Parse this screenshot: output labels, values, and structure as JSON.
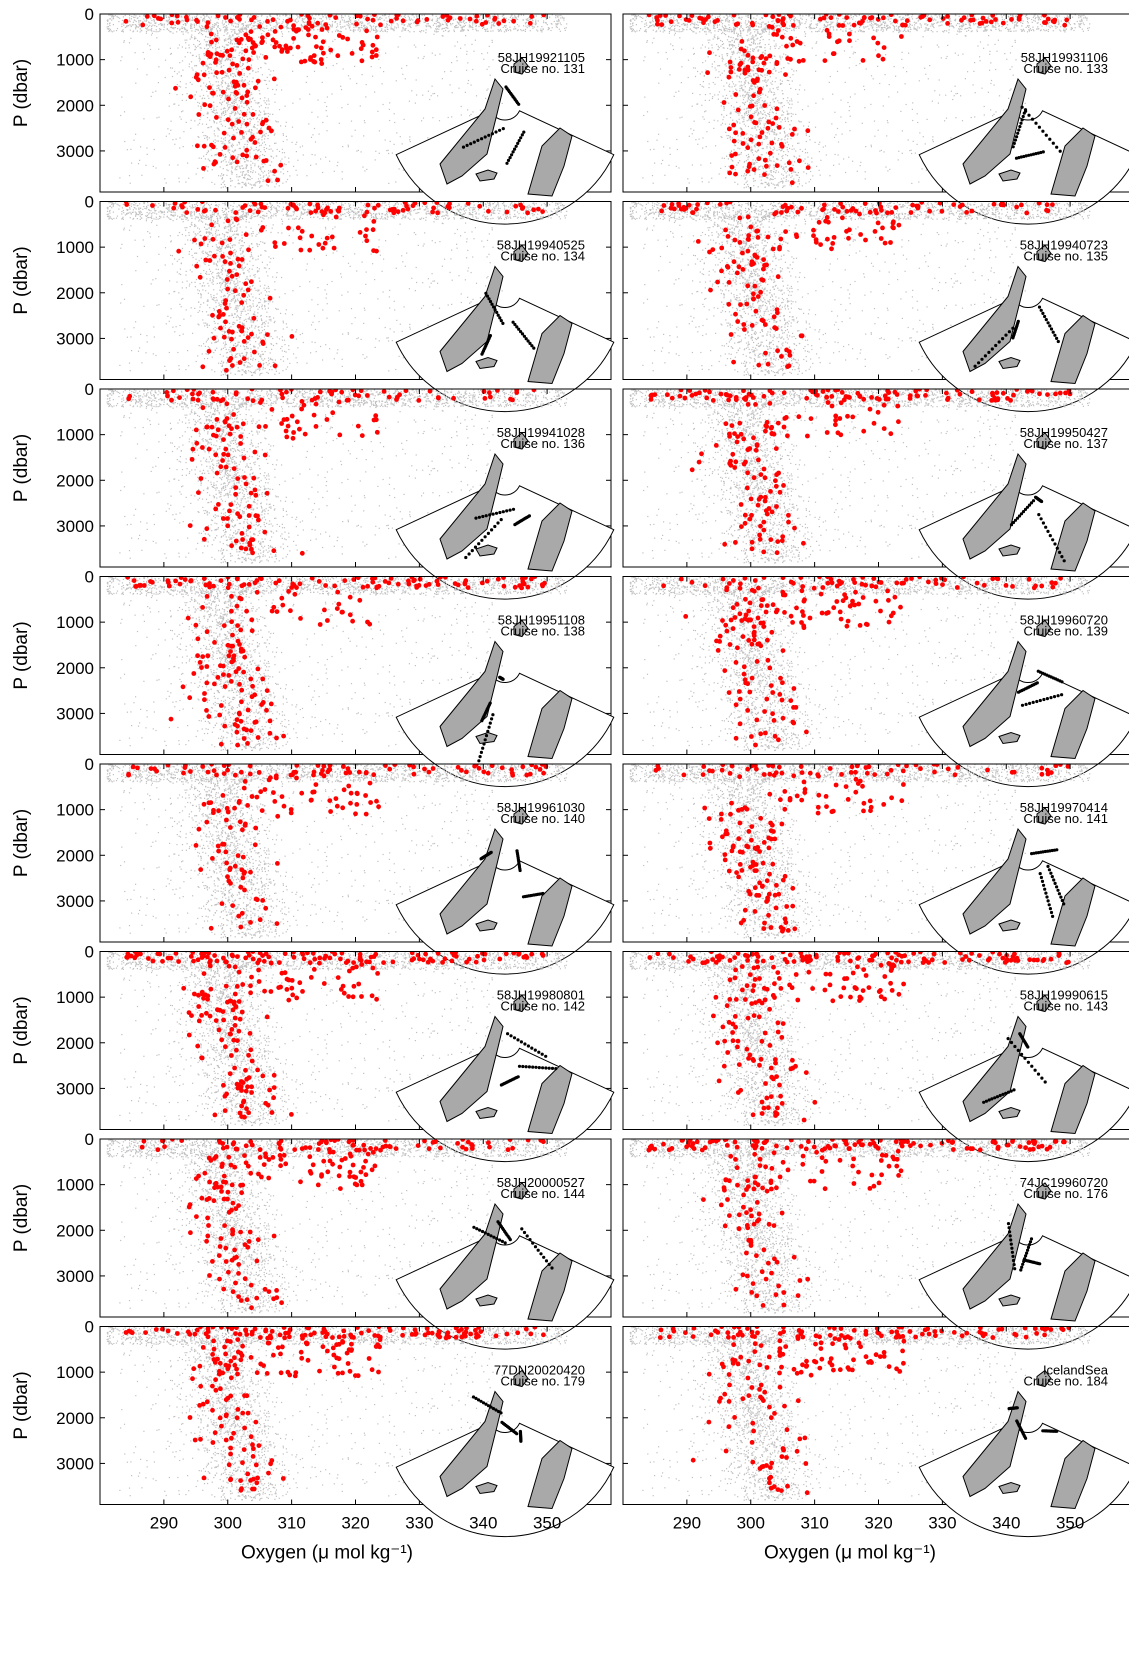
{
  "figure": {
    "x_axis_title": "Oxygen (μ mol kg⁻¹)",
    "y_axis_title": "P (dbar)",
    "x_tick_labels": [
      "290",
      "300",
      "310",
      "320",
      "330",
      "340",
      "350"
    ],
    "y_tick_labels": [
      "0",
      "1000",
      "2000",
      "3000"
    ]
  },
  "chart_data": {
    "type": "scatter",
    "layout": "8 rows x 2 columns of small-multiple panels",
    "xlabel": "Oxygen (μ mol kg⁻¹)",
    "ylabel": "P (dbar)",
    "xlim": [
      280,
      360
    ],
    "ylim": [
      3900,
      0
    ],
    "x_ticks": [
      290,
      300,
      310,
      320,
      330,
      340,
      350
    ],
    "y_ticks": [
      0,
      1000,
      2000,
      3000
    ],
    "colors": {
      "background_points": "#c0c0c0",
      "cruise_points": "#ff0000",
      "land": "#a9a9a9"
    },
    "background_series": "all other cruises (grey dots)",
    "panels": [
      {
        "expocode": "58JH19921105",
        "cruise_label": "Cruise no. 131"
      },
      {
        "expocode": "58JH19931106",
        "cruise_label": "Cruise no. 133"
      },
      {
        "expocode": "58JH19940525",
        "cruise_label": "Cruise no. 134"
      },
      {
        "expocode": "58JH19940723",
        "cruise_label": "Cruise no. 135"
      },
      {
        "expocode": "58JH19941028",
        "cruise_label": "Cruise no. 136"
      },
      {
        "expocode": "58JH19950427",
        "cruise_label": "Cruise no. 137"
      },
      {
        "expocode": "58JH19951108",
        "cruise_label": "Cruise no. 138"
      },
      {
        "expocode": "58JH19960720",
        "cruise_label": "Cruise no. 139"
      },
      {
        "expocode": "58JH19961030",
        "cruise_label": "Cruise no. 140"
      },
      {
        "expocode": "58JH19970414",
        "cruise_label": "Cruise no. 141"
      },
      {
        "expocode": "58JH19980801",
        "cruise_label": "Cruise no. 142"
      },
      {
        "expocode": "58JH19990615",
        "cruise_label": "Cruise no. 143"
      },
      {
        "expocode": "58JH20000527",
        "cruise_label": "Cruise no. 144"
      },
      {
        "expocode": "74JC19960720",
        "cruise_label": "Cruise no. 176"
      },
      {
        "expocode": "77DN20020420",
        "cruise_label": "Cruise no. 179"
      },
      {
        "expocode": "IcelandSea",
        "cruise_label": "Cruise no. 184"
      }
    ]
  }
}
